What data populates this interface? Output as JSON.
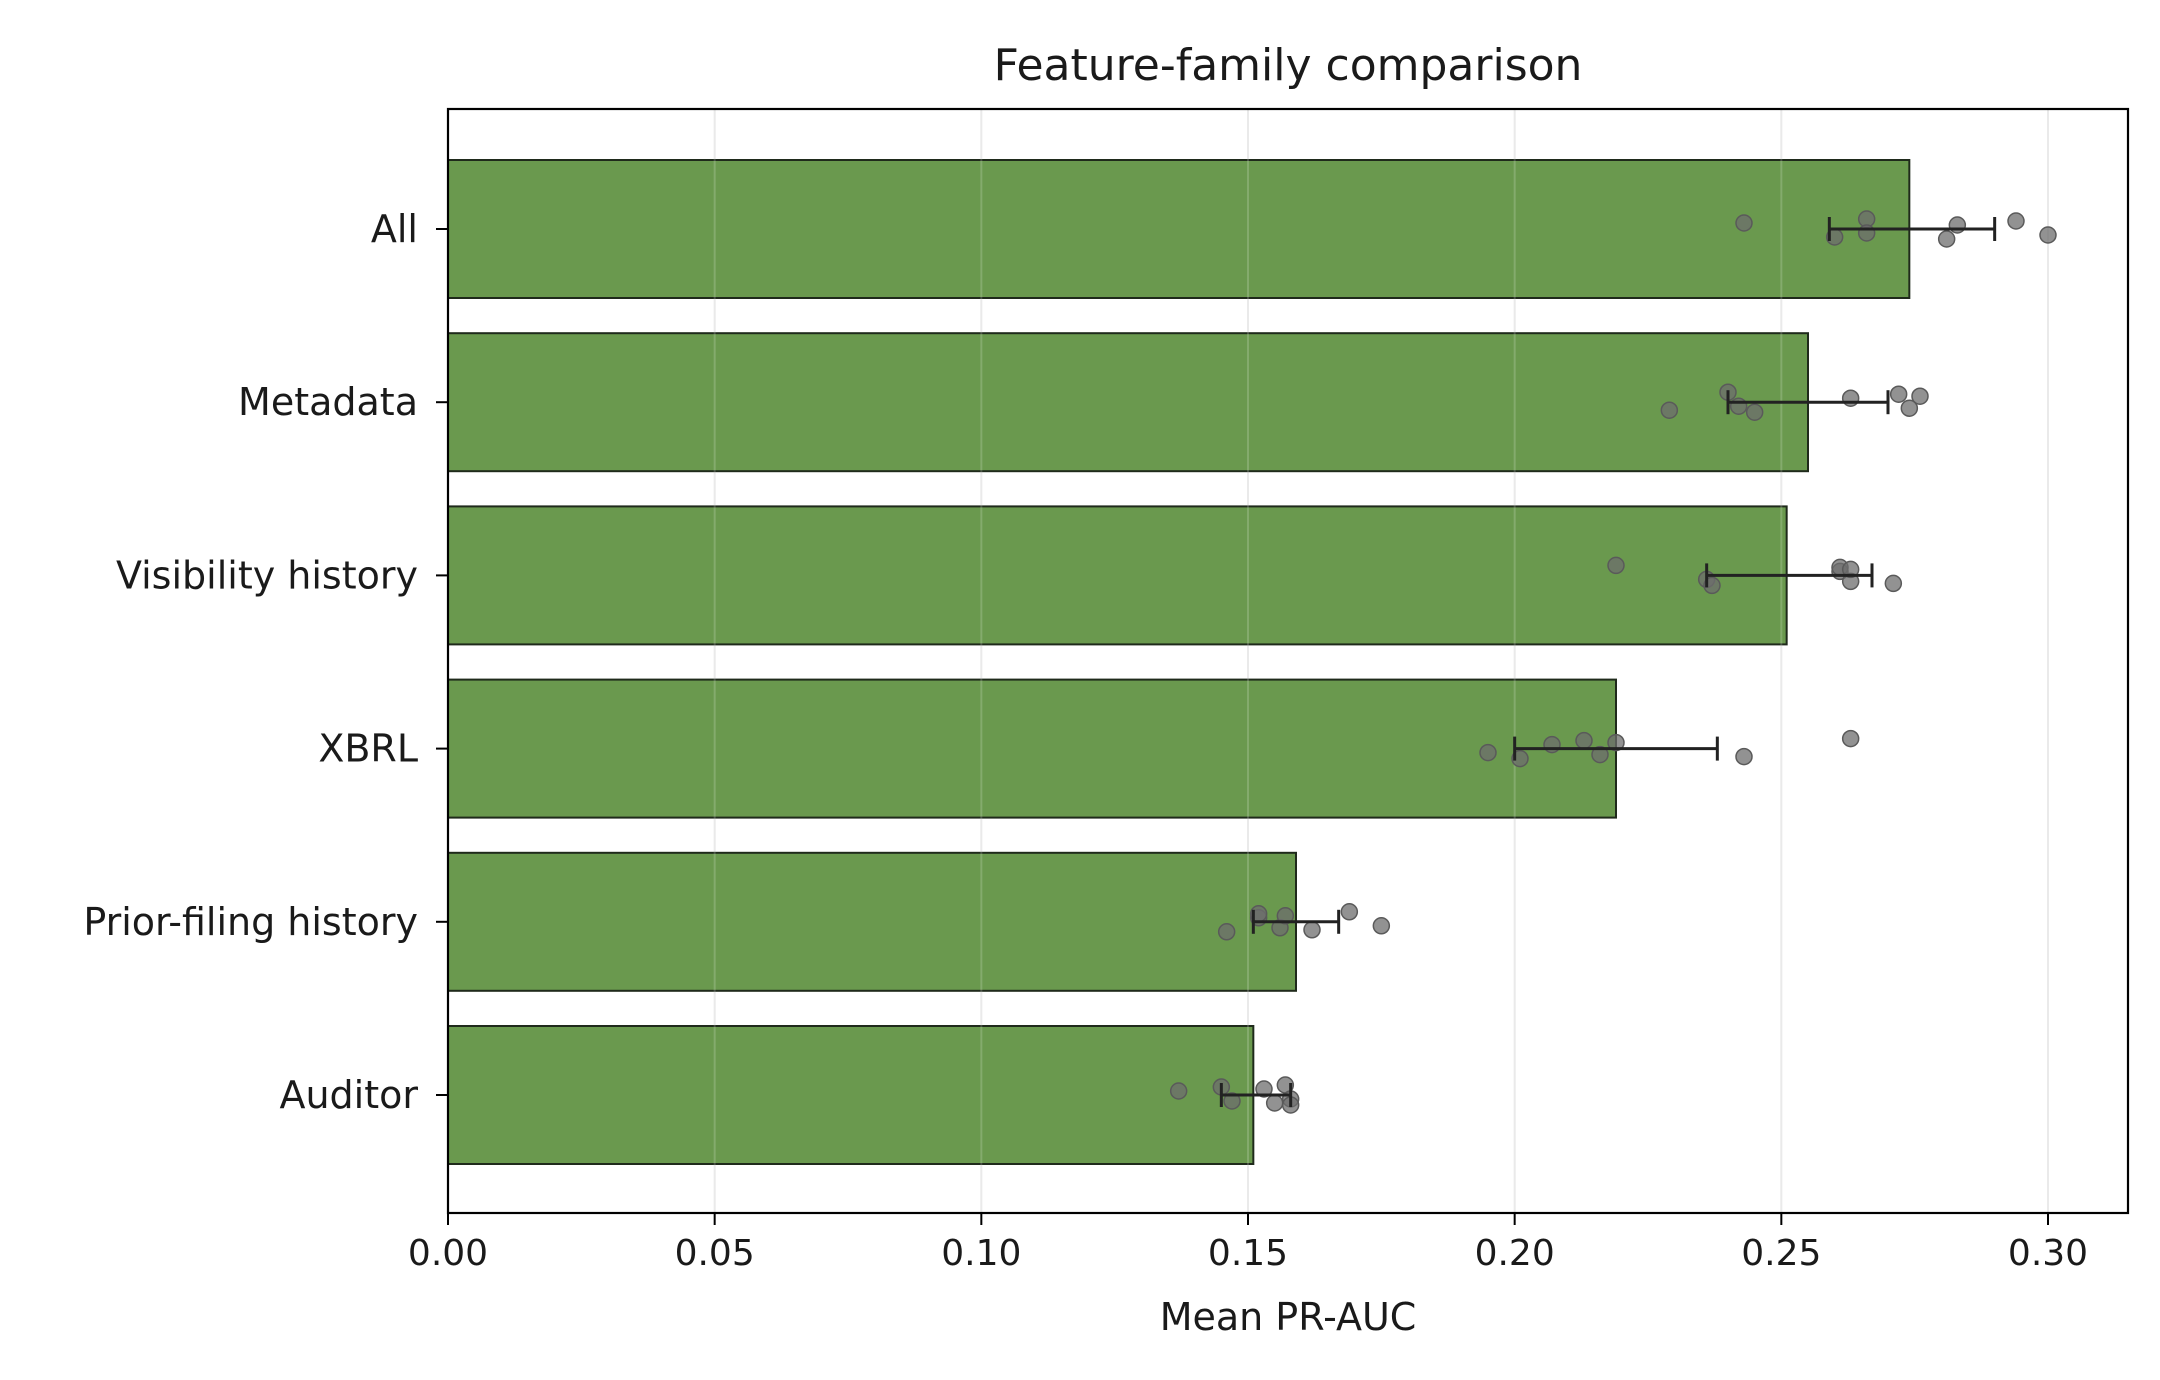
{
  "chart_data": {
    "type": "bar",
    "orientation": "horizontal",
    "title": "Feature-family comparison",
    "xlabel": "Mean PR-AUC",
    "ylabel": "",
    "xlim": [
      0,
      0.315
    ],
    "xticks": [
      0.0,
      0.05,
      0.1,
      0.15,
      0.2,
      0.25,
      0.3
    ],
    "xtick_labels": [
      "0.00",
      "0.05",
      "0.10",
      "0.15",
      "0.20",
      "0.25",
      "0.30"
    ],
    "grid": "x",
    "colors": {
      "bar": "#6a994e",
      "bar_edge": "#1f2a1b",
      "point": "#6e6e6e",
      "error": "#222222",
      "grid": "#e6e6e6"
    },
    "categories": [
      "All",
      "Metadata",
      "Visibility history",
      "XBRL",
      "Prior-filing history",
      "Auditor"
    ],
    "values": [
      0.274,
      0.255,
      0.251,
      0.219,
      0.159,
      0.151
    ],
    "error_low": [
      0.259,
      0.24,
      0.236,
      0.2,
      0.151,
      0.145
    ],
    "error_high": [
      0.29,
      0.27,
      0.267,
      0.238,
      0.167,
      0.158
    ],
    "points": [
      [
        0.243,
        0.26,
        0.266,
        0.266,
        0.281,
        0.283,
        0.294,
        0.3
      ],
      [
        0.229,
        0.24,
        0.242,
        0.245,
        0.263,
        0.272,
        0.274,
        0.276
      ],
      [
        0.219,
        0.236,
        0.237,
        0.261,
        0.261,
        0.263,
        0.263,
        0.271
      ],
      [
        0.195,
        0.201,
        0.207,
        0.213,
        0.216,
        0.219,
        0.243,
        0.263
      ],
      [
        0.146,
        0.152,
        0.152,
        0.156,
        0.157,
        0.162,
        0.169,
        0.175
      ],
      [
        0.137,
        0.145,
        0.147,
        0.153,
        0.155,
        0.157,
        0.158,
        0.158
      ]
    ]
  }
}
